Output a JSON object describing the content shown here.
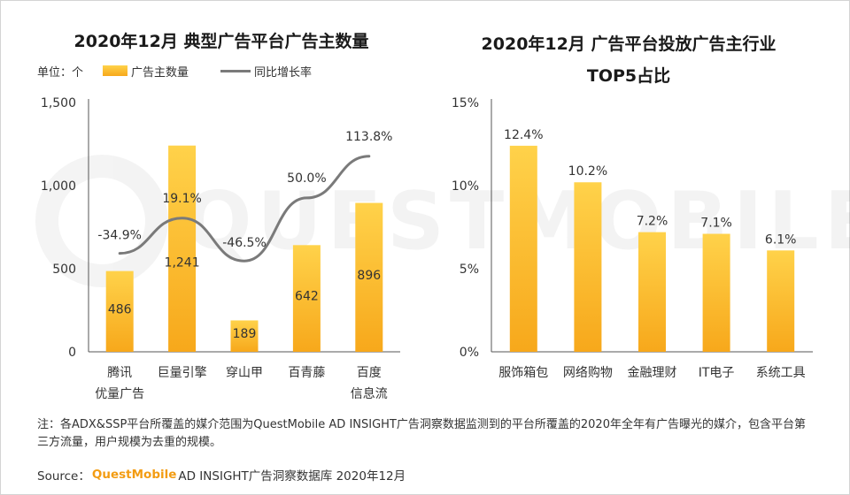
{
  "watermark": "QUESTMOBILE",
  "left_chart": {
    "title": "2020年12月 典型广告平台广告主数量",
    "unit_label": "单位：个",
    "legend_bar": "广告主数量",
    "legend_line": "同比增长率"
  },
  "right_chart": {
    "title_line1": "2020年12月 广告平台投放广告主行业",
    "title_line2": "TOP5占比"
  },
  "chart_data": [
    {
      "type": "bar",
      "title": "2020年12月 典型广告平台广告主数量",
      "categories": [
        [
          "腾讯",
          "优量广告"
        ],
        [
          "巨量引擎"
        ],
        [
          "穿山甲"
        ],
        [
          "百青藤"
        ],
        [
          "百度",
          "信息流"
        ]
      ],
      "series": [
        {
          "name": "广告主数量",
          "type": "bar",
          "values": [
            486,
            1241,
            189,
            642,
            896
          ],
          "labels": [
            "486",
            "1,241",
            "189",
            "642",
            "896"
          ]
        },
        {
          "name": "同比增长率",
          "type": "line",
          "values": [
            -34.9,
            19.1,
            -46.5,
            50.0,
            113.8
          ],
          "labels": [
            "-34.9%",
            "19.1%",
            "-46.5%",
            "50.0%",
            "113.8%"
          ]
        }
      ],
      "yticks": [
        "0",
        "500",
        "1,000",
        "1,500"
      ],
      "ylim": [
        0,
        1500
      ],
      "legend": "top-left"
    },
    {
      "type": "bar",
      "title": "2020年12月 广告平台投放广告主行业 TOP5占比",
      "categories": [
        "服饰箱包",
        "网络购物",
        "金融理财",
        "IT电子",
        "系统工具"
      ],
      "values": [
        12.4,
        10.2,
        7.2,
        7.1,
        6.1
      ],
      "labels": [
        "12.4%",
        "10.2%",
        "7.2%",
        "7.1%",
        "6.1%"
      ],
      "yticks": [
        "0%",
        "5%",
        "10%",
        "15%"
      ],
      "ylim": [
        0,
        15
      ]
    }
  ],
  "footer": {
    "note": "注：各ADX&SSP平台所覆盖的媒介范围为QuestMobile AD INSIGHT广告洞察数据监测到的平台所覆盖的2020年全年有广告曝光的媒介，包含平台第三方流量，用户规模为去重的规模。",
    "source_prefix": "Source：",
    "source_brand": "QuestMobile",
    "source_suffix": "AD INSIGHT广告洞察数据库 2020年12月"
  },
  "colors": {
    "bar_top": "#ffd24a",
    "bar_bottom": "#f7a81b",
    "line": "#7a7a7a",
    "brand": "#f39c12"
  }
}
